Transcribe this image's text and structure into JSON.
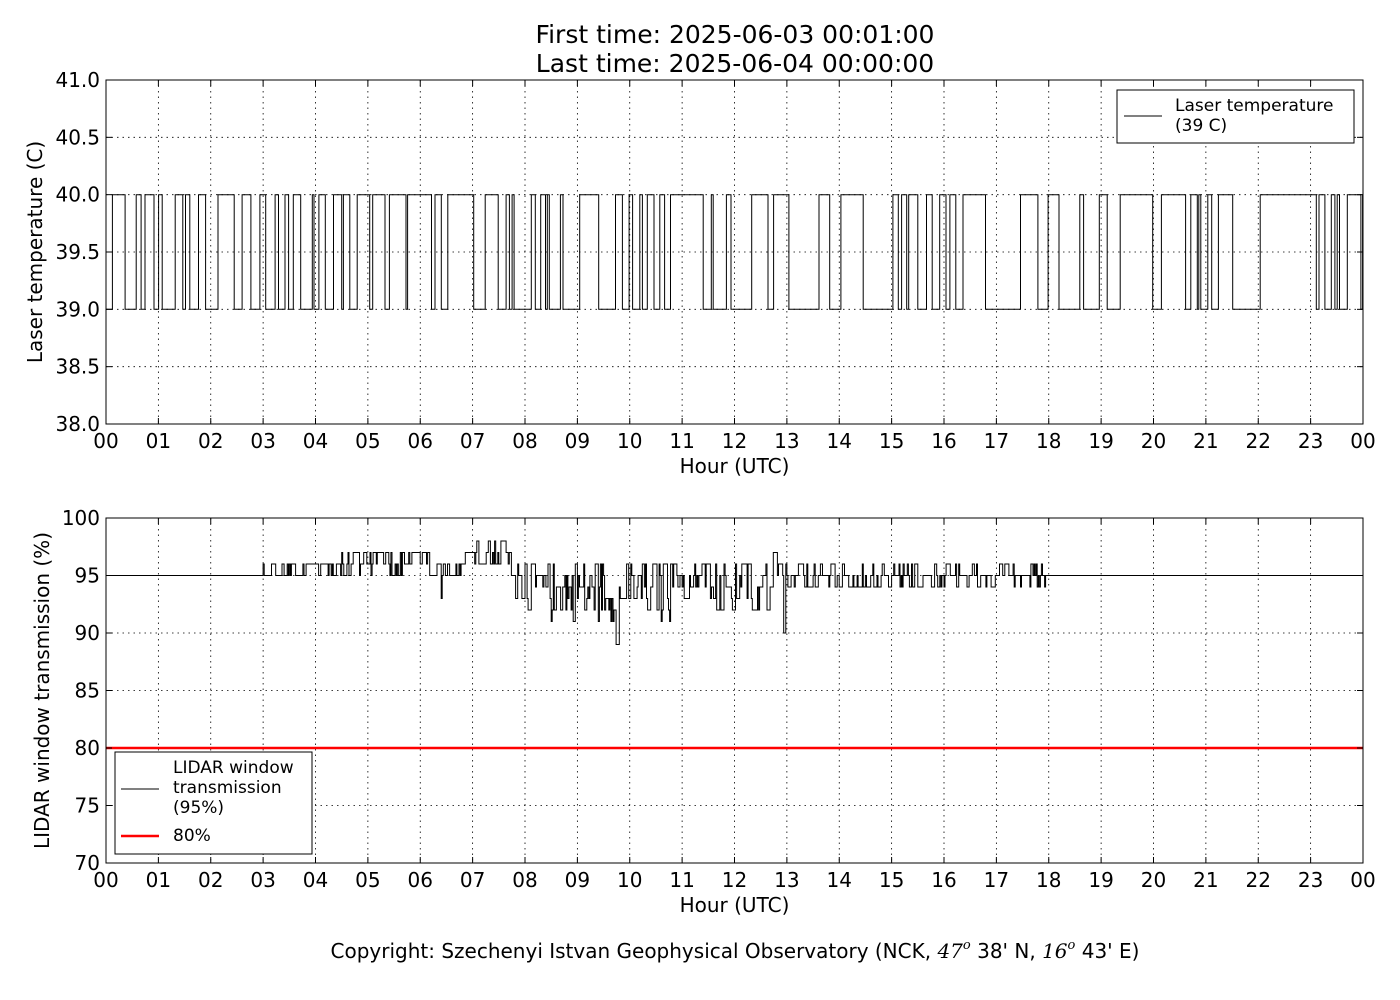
{
  "title": {
    "line1": "First time: 2025-06-03 00:01:00",
    "line2": "Last time: 2025-06-04 00:00:00"
  },
  "copyright": {
    "prefix": "Copyright: Szechenyi Istvan Geophysical Observatory (NCK, ",
    "lat_deg": "47",
    "deg_sup": "o",
    "lat_min": " 38' N, ",
    "lon_deg": "16",
    "lon_min": " 43' E)"
  },
  "colors": {
    "series": "#000000",
    "threshold": "#ff0000",
    "grid": "#000000"
  },
  "chart_data": [
    {
      "type": "line",
      "xlabel": "Hour (UTC)",
      "ylabel": "Laser temperature (C)",
      "xlim": [
        0,
        24
      ],
      "ylim": [
        38.0,
        41.0
      ],
      "xticks": [
        "00",
        "01",
        "02",
        "03",
        "04",
        "05",
        "06",
        "07",
        "08",
        "09",
        "10",
        "11",
        "12",
        "13",
        "14",
        "15",
        "16",
        "17",
        "18",
        "19",
        "20",
        "21",
        "22",
        "23",
        "00"
      ],
      "yticks": [
        "38.0",
        "38.5",
        "39.0",
        "39.5",
        "40.0",
        "40.5",
        "41.0"
      ],
      "ytick_values": [
        38.0,
        38.5,
        39.0,
        39.5,
        40.0,
        40.5,
        41.0
      ],
      "grid": true,
      "legend_position": "top-right",
      "series": [
        {
          "name": "Laser temperature\n(39 C)",
          "color": "#000000",
          "kind": "binary-step",
          "low": 39.0,
          "high": 40.0,
          "toggle_density": [
            [
              0,
              0.3,
              4
            ],
            [
              0.3,
              1.0,
              6
            ],
            [
              1.0,
              2.0,
              4
            ],
            [
              2.0,
              3.0,
              3
            ],
            [
              3.0,
              4.5,
              4
            ],
            [
              4.5,
              6.5,
              4
            ],
            [
              6.5,
              7.5,
              2
            ],
            [
              7.5,
              8.7,
              5
            ],
            [
              8.7,
              9.2,
              2
            ],
            [
              9.2,
              10.8,
              4
            ],
            [
              10.8,
              11.2,
              1
            ],
            [
              11.2,
              12.8,
              4
            ],
            [
              12.8,
              13.2,
              1
            ],
            [
              13.2,
              14.0,
              4
            ],
            [
              14.0,
              15.1,
              2
            ],
            [
              15.1,
              16.5,
              4
            ],
            [
              16.5,
              17.0,
              1
            ],
            [
              17.0,
              19.0,
              2
            ],
            [
              19.0,
              20.0,
              3
            ],
            [
              20.0,
              21.5,
              5
            ],
            [
              21.5,
              22.0,
              1
            ],
            [
              22.0,
              22.9,
              1
            ],
            [
              22.9,
              24.0,
              4
            ]
          ],
          "plateaus_high": [
            [
              8.75,
              9.1
            ],
            [
              13.9,
              14.2
            ],
            [
              20.1,
              20.5
            ],
            [
              22.1,
              22.9
            ]
          ]
        }
      ]
    },
    {
      "type": "line",
      "xlabel": "Hour (UTC)",
      "ylabel": "LIDAR window transmission (%)",
      "xlim": [
        0,
        24
      ],
      "ylim": [
        70,
        100
      ],
      "xticks": [
        "00",
        "01",
        "02",
        "03",
        "04",
        "05",
        "06",
        "07",
        "08",
        "09",
        "10",
        "11",
        "12",
        "13",
        "14",
        "15",
        "16",
        "17",
        "18",
        "19",
        "20",
        "21",
        "22",
        "23",
        "00"
      ],
      "yticks": [
        "70",
        "75",
        "80",
        "85",
        "90",
        "95",
        "100"
      ],
      "ytick_values": [
        70,
        75,
        80,
        85,
        90,
        95,
        100
      ],
      "grid": true,
      "legend_position": "bottom-left",
      "series": [
        {
          "name": "LIDAR window\ntransmission\n(95%)",
          "color": "#000000",
          "kind": "noisy",
          "baseline": 95,
          "noise_segments": [
            [
              0,
              3.0,
              0,
              0
            ],
            [
              3.0,
              4.0,
              1,
              0.5
            ],
            [
              4.0,
              6.8,
              1.5,
              1.0
            ],
            [
              6.8,
              7.0,
              1,
              1.5
            ],
            [
              7.0,
              7.7,
              1,
              1.8
            ],
            [
              7.7,
              8.0,
              2,
              0
            ],
            [
              8.0,
              10.8,
              2.5,
              -1.3
            ],
            [
              10.8,
              11.6,
              1.5,
              -0.3
            ],
            [
              11.6,
              13.0,
              2.5,
              -1.0
            ],
            [
              13.0,
              15.5,
              1.2,
              -0.2
            ],
            [
              15.5,
              18.0,
              0.8,
              -0.1
            ],
            [
              18.0,
              20.0,
              0.4,
              0
            ],
            [
              20.0,
              22.5,
              0,
              0
            ],
            [
              22.5,
              23.0,
              0.4,
              0
            ],
            [
              23.0,
              24.0,
              0,
              0
            ]
          ],
          "spikes": [
            [
              7.55,
              98
            ],
            [
              9.75,
              89
            ],
            [
              12.95,
              90
            ],
            [
              12.75,
              97
            ],
            [
              6.4,
              93
            ]
          ]
        },
        {
          "name": "80%",
          "color": "#ff0000",
          "kind": "constant",
          "value": 80
        }
      ]
    }
  ]
}
